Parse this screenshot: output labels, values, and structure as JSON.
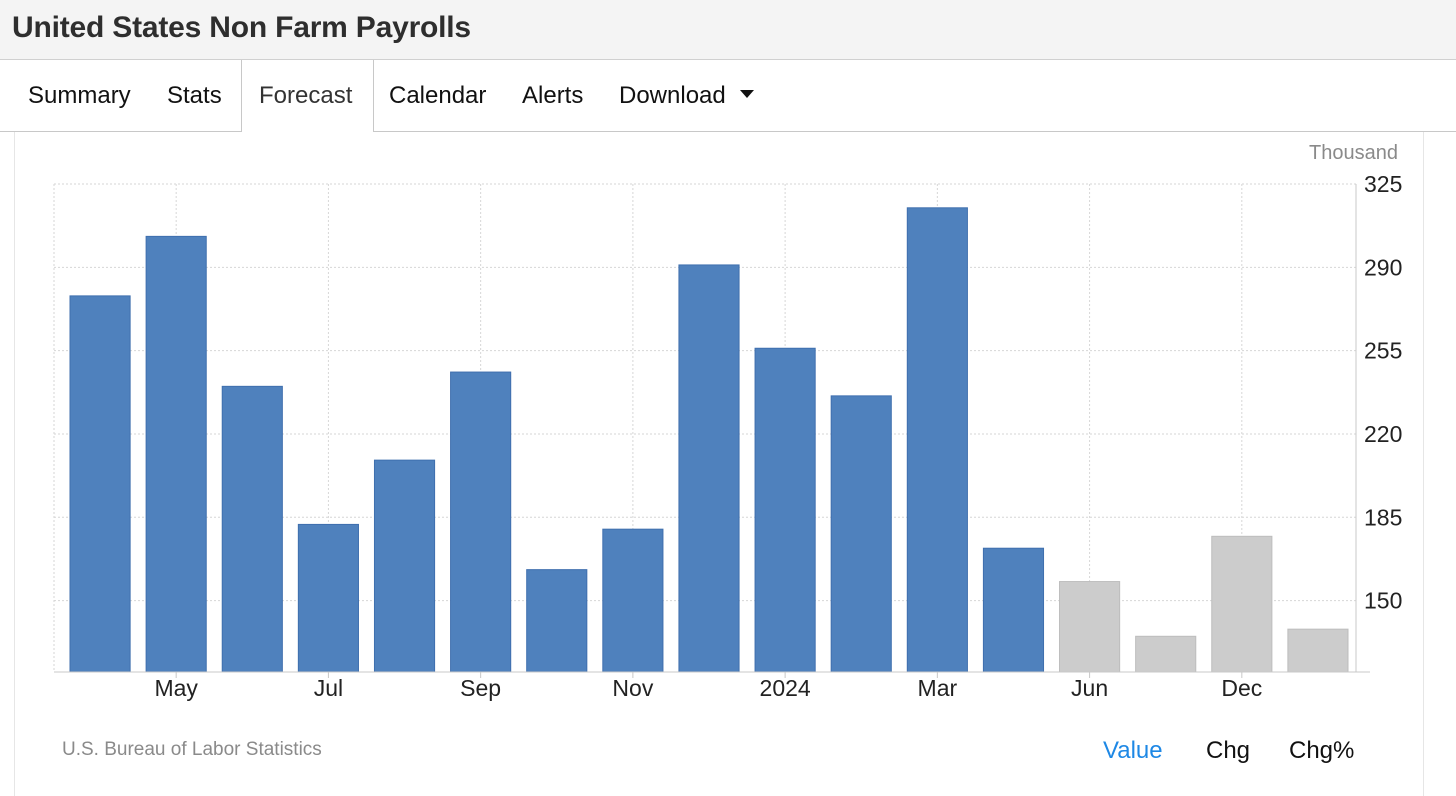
{
  "header": {
    "title": "United States Non Farm Payrolls"
  },
  "tabs": [
    {
      "label": "Summary"
    },
    {
      "label": "Stats"
    },
    {
      "label": "Forecast"
    },
    {
      "label": "Calendar"
    },
    {
      "label": "Alerts"
    },
    {
      "label": "Download"
    }
  ],
  "active_tab": "Forecast",
  "footer": {
    "source": "U.S. Bureau of Labor Statistics",
    "modes": [
      "Value",
      "Chg",
      "Chg%"
    ],
    "active_mode": "Value"
  },
  "colors": {
    "actual": "#4f81bd",
    "forecast": "#cccccc",
    "active_link": "#1e88e5"
  },
  "chart_data": {
    "type": "bar",
    "unit_label": "Thousand",
    "x_tick_labels": [
      "May",
      "Jul",
      "Sep",
      "Nov",
      "2024",
      "Mar",
      "Jun",
      "Dec"
    ],
    "ylim": [
      120,
      325
    ],
    "y_ticks": [
      150,
      185,
      220,
      255,
      290,
      325
    ],
    "y_axis_position": "right",
    "grid": true,
    "series": [
      {
        "status": "actual",
        "color": "#4f81bd",
        "values": [
          278,
          303,
          240,
          182,
          209,
          246,
          163,
          180,
          291,
          256,
          236,
          315,
          172
        ]
      },
      {
        "status": "forecast",
        "color": "#cccccc",
        "values": [
          158,
          135,
          177,
          138
        ]
      }
    ]
  }
}
